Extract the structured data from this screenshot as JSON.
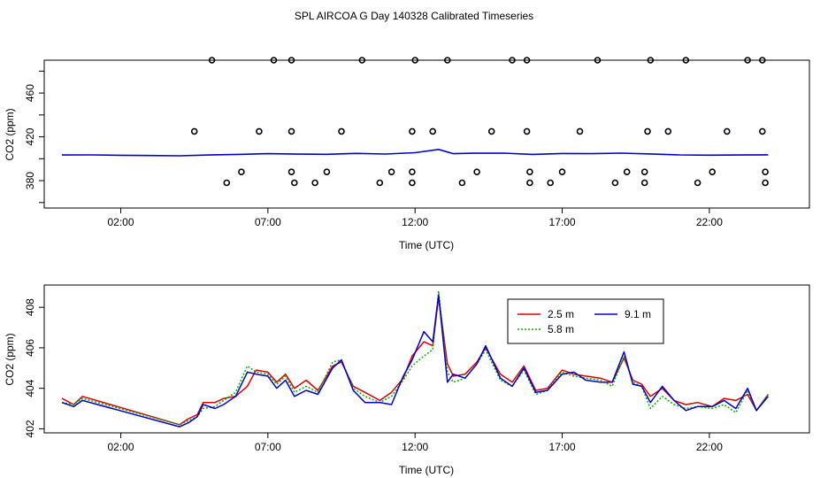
{
  "title": "SPL AIRCOA G  Day 140328  Calibrated Timeseries",
  "colors": {
    "s25": "#e00000",
    "s58": "#00b000",
    "s91": "#0000d0",
    "axis": "#000000"
  },
  "chart_data": [
    {
      "type": "scatter",
      "ylabel": "CO2 (ppm)",
      "xlabel": "Time (UTC)",
      "xlim_hours": [
        -0.6,
        25.4
      ],
      "ylim": [
        355,
        490
      ],
      "x_ticks": [
        {
          "h": 2,
          "label": "02:00"
        },
        {
          "h": 7,
          "label": "07:00"
        },
        {
          "h": 12,
          "label": "12:00"
        },
        {
          "h": 17,
          "label": "17:00"
        },
        {
          "h": 22,
          "label": "22:00"
        }
      ],
      "y_ticks": [
        {
          "v": 380,
          "label": "380"
        },
        {
          "v": 420,
          "label": "420"
        },
        {
          "v": 460,
          "label": "460"
        }
      ],
      "y_ticks_unlabeled": [
        360,
        400,
        440,
        480
      ],
      "line_color": "#0000d0",
      "line": [
        [
          0,
          403.4
        ],
        [
          1,
          403.5
        ],
        [
          2,
          403.2
        ],
        [
          3,
          402.9
        ],
        [
          4,
          402.7
        ],
        [
          5,
          403.4
        ],
        [
          6,
          404
        ],
        [
          7,
          404.6
        ],
        [
          8,
          404.2
        ],
        [
          9,
          404.1
        ],
        [
          10,
          404.9
        ],
        [
          11,
          404.3
        ],
        [
          12,
          405.5
        ],
        [
          12.8,
          408.5
        ],
        [
          13.3,
          404.6
        ],
        [
          14,
          405
        ],
        [
          15,
          405.1
        ],
        [
          16,
          404
        ],
        [
          17,
          404.8
        ],
        [
          18,
          404.6
        ],
        [
          19,
          405.1
        ],
        [
          20,
          404.4
        ],
        [
          21,
          403.5
        ],
        [
          22,
          403.3
        ],
        [
          23,
          403.4
        ],
        [
          24,
          403.6
        ]
      ],
      "points": [
        [
          5.1,
          490
        ],
        [
          7.2,
          490
        ],
        [
          7.8,
          490
        ],
        [
          10.2,
          490
        ],
        [
          12,
          490
        ],
        [
          13.1,
          490
        ],
        [
          15.3,
          490
        ],
        [
          15.8,
          490
        ],
        [
          18.2,
          490
        ],
        [
          20.0,
          490
        ],
        [
          21.2,
          490
        ],
        [
          23.3,
          490
        ],
        [
          23.8,
          490
        ],
        [
          4.5,
          425
        ],
        [
          6.7,
          425
        ],
        [
          7.8,
          425
        ],
        [
          9.5,
          425
        ],
        [
          11.9,
          425
        ],
        [
          12.6,
          425
        ],
        [
          14.6,
          425
        ],
        [
          15.8,
          425
        ],
        [
          17.6,
          425
        ],
        [
          19.9,
          425
        ],
        [
          20.6,
          425
        ],
        [
          22.6,
          425
        ],
        [
          23.8,
          425
        ],
        [
          6.1,
          388
        ],
        [
          7.8,
          388
        ],
        [
          9.0,
          388
        ],
        [
          11.2,
          388
        ],
        [
          11.9,
          388
        ],
        [
          14.1,
          388
        ],
        [
          15.9,
          388
        ],
        [
          17.0,
          388
        ],
        [
          19.2,
          388
        ],
        [
          19.8,
          388
        ],
        [
          22.1,
          388
        ],
        [
          23.9,
          388
        ],
        [
          5.6,
          378
        ],
        [
          7.9,
          378
        ],
        [
          8.6,
          378
        ],
        [
          10.8,
          378
        ],
        [
          11.9,
          378
        ],
        [
          13.6,
          378
        ],
        [
          15.9,
          378
        ],
        [
          16.6,
          378
        ],
        [
          18.8,
          378
        ],
        [
          19.8,
          378
        ],
        [
          21.6,
          378
        ],
        [
          23.9,
          378
        ]
      ]
    },
    {
      "type": "line",
      "ylabel": "CO2 (ppm)",
      "xlabel": "Time (UTC)",
      "xlim_hours": [
        -0.6,
        25.4
      ],
      "ylim": [
        401.8,
        409.1
      ],
      "x_ticks": [
        {
          "h": 2,
          "label": "02:00"
        },
        {
          "h": 7,
          "label": "07:00"
        },
        {
          "h": 12,
          "label": "12:00"
        },
        {
          "h": 17,
          "label": "17:00"
        },
        {
          "h": 22,
          "label": "22:00"
        }
      ],
      "y_ticks": [
        {
          "v": 402,
          "label": "402"
        },
        {
          "v": 404,
          "label": "404"
        },
        {
          "v": 406,
          "label": "406"
        },
        {
          "v": 408,
          "label": "408"
        }
      ],
      "legend": {
        "position": "top-right"
      },
      "series": [
        {
          "name": "2.5 m",
          "color": "#e00000",
          "dash": "",
          "points": [
            [
              0,
              403.5
            ],
            [
              0.4,
              403.2
            ],
            [
              0.7,
              403.6
            ],
            [
              4,
              402.2
            ],
            [
              4.3,
              402.5
            ],
            [
              4.6,
              402.7
            ],
            [
              4.8,
              403.3
            ],
            [
              5.2,
              403.3
            ],
            [
              5.5,
              403.5
            ],
            [
              5.9,
              403.6
            ],
            [
              6.3,
              404.1
            ],
            [
              6.6,
              404.9
            ],
            [
              7,
              404.8
            ],
            [
              7.3,
              404.3
            ],
            [
              7.6,
              404.7
            ],
            [
              7.9,
              404
            ],
            [
              8.3,
              404.4
            ],
            [
              8.7,
              403.9
            ],
            [
              9.2,
              405.1
            ],
            [
              9.5,
              405.3
            ],
            [
              9.9,
              404.1
            ],
            [
              10.3,
              403.8
            ],
            [
              10.8,
              403.4
            ],
            [
              11.2,
              403.8
            ],
            [
              11.6,
              404.5
            ],
            [
              11.9,
              405.6
            ],
            [
              12.3,
              406.3
            ],
            [
              12.6,
              406.1
            ],
            [
              12.8,
              408.5
            ],
            [
              13.1,
              405.2
            ],
            [
              13.3,
              404.6
            ],
            [
              13.7,
              404.7
            ],
            [
              14.1,
              405.3
            ],
            [
              14.4,
              406
            ],
            [
              14.9,
              404.7
            ],
            [
              15.3,
              404.3
            ],
            [
              15.7,
              405.1
            ],
            [
              16.1,
              403.9
            ],
            [
              16.5,
              404
            ],
            [
              17,
              404.9
            ],
            [
              17.4,
              404.7
            ],
            [
              17.8,
              404.6
            ],
            [
              18.3,
              404.5
            ],
            [
              18.7,
              404.3
            ],
            [
              19.1,
              405.5
            ],
            [
              19.4,
              404.4
            ],
            [
              19.7,
              404.2
            ],
            [
              20,
              403.6
            ],
            [
              20.4,
              404
            ],
            [
              20.8,
              403.4
            ],
            [
              21.2,
              403.2
            ],
            [
              21.6,
              403.3
            ],
            [
              22.1,
              403.1
            ],
            [
              22.5,
              403.5
            ],
            [
              22.9,
              403.4
            ],
            [
              23.3,
              403.7
            ],
            [
              23.6,
              402.9
            ],
            [
              24,
              403.7
            ]
          ]
        },
        {
          "name": "5.8 m",
          "color": "#00b000",
          "dash": "2,2",
          "points": [
            [
              0,
              403.3
            ],
            [
              0.4,
              403.2
            ],
            [
              0.7,
              403.5
            ],
            [
              4,
              402.2
            ],
            [
              4.3,
              402.4
            ],
            [
              4.6,
              402.6
            ],
            [
              4.8,
              403.0
            ],
            [
              5.2,
              403.1
            ],
            [
              5.5,
              403.4
            ],
            [
              5.9,
              403.8
            ],
            [
              6.3,
              405.1
            ],
            [
              6.6,
              404.8
            ],
            [
              7,
              404.7
            ],
            [
              7.3,
              404.2
            ],
            [
              7.6,
              404.6
            ],
            [
              7.9,
              403.8
            ],
            [
              8.3,
              404.1
            ],
            [
              8.7,
              403.8
            ],
            [
              9.2,
              405.3
            ],
            [
              9.5,
              405.4
            ],
            [
              9.9,
              404
            ],
            [
              10.3,
              403.6
            ],
            [
              10.8,
              403.3
            ],
            [
              11.2,
              403.6
            ],
            [
              11.6,
              404.4
            ],
            [
              11.9,
              405.1
            ],
            [
              12.3,
              405.6
            ],
            [
              12.6,
              405.9
            ],
            [
              12.8,
              408.8
            ],
            [
              13.1,
              404.8
            ],
            [
              13.3,
              404.3
            ],
            [
              13.7,
              404.5
            ],
            [
              14.1,
              405.2
            ],
            [
              14.4,
              405.9
            ],
            [
              14.9,
              404.4
            ],
            [
              15.3,
              404.1
            ],
            [
              15.7,
              404.9
            ],
            [
              16.1,
              403.7
            ],
            [
              16.5,
              403.9
            ],
            [
              17,
              404.8
            ],
            [
              17.4,
              404.6
            ],
            [
              17.8,
              404.5
            ],
            [
              18.3,
              404.4
            ],
            [
              18.7,
              404.1
            ],
            [
              19.1,
              405.6
            ],
            [
              19.4,
              404.3
            ],
            [
              19.7,
              404.1
            ],
            [
              20,
              403
            ],
            [
              20.4,
              403.6
            ],
            [
              20.8,
              403.2
            ],
            [
              21.2,
              403
            ],
            [
              21.6,
              403.1
            ],
            [
              22.1,
              403
            ],
            [
              22.5,
              403.2
            ],
            [
              22.9,
              402.8
            ],
            [
              23.3,
              403.9
            ],
            [
              23.6,
              402.9
            ],
            [
              24,
              403.7
            ]
          ]
        },
        {
          "name": "9.1 m",
          "color": "#0000d0",
          "dash": "",
          "points": [
            [
              0,
              403.3
            ],
            [
              0.4,
              403.1
            ],
            [
              0.7,
              403.4
            ],
            [
              4,
              402.1
            ],
            [
              4.3,
              402.3
            ],
            [
              4.6,
              402.6
            ],
            [
              4.8,
              403.2
            ],
            [
              5.2,
              403
            ],
            [
              5.5,
              403.2
            ],
            [
              5.9,
              403.6
            ],
            [
              6.3,
              404.8
            ],
            [
              6.6,
              404.7
            ],
            [
              7,
              404.6
            ],
            [
              7.3,
              404
            ],
            [
              7.6,
              404.4
            ],
            [
              7.9,
              403.6
            ],
            [
              8.3,
              403.9
            ],
            [
              8.7,
              403.7
            ],
            [
              9.2,
              405
            ],
            [
              9.5,
              405.4
            ],
            [
              9.9,
              403.9
            ],
            [
              10.3,
              403.3
            ],
            [
              10.8,
              403.3
            ],
            [
              11.2,
              403.2
            ],
            [
              11.6,
              404.6
            ],
            [
              11.9,
              405.4
            ],
            [
              12.3,
              406.8
            ],
            [
              12.6,
              406.3
            ],
            [
              12.8,
              408.6
            ],
            [
              13.1,
              404.3
            ],
            [
              13.3,
              404.7
            ],
            [
              13.7,
              404.5
            ],
            [
              14.1,
              405.2
            ],
            [
              14.4,
              406.1
            ],
            [
              14.9,
              404.5
            ],
            [
              15.3,
              404.1
            ],
            [
              15.7,
              405
            ],
            [
              16.1,
              403.8
            ],
            [
              16.5,
              403.9
            ],
            [
              17,
              404.7
            ],
            [
              17.4,
              404.8
            ],
            [
              17.8,
              404.4
            ],
            [
              18.3,
              404.3
            ],
            [
              18.7,
              404.3
            ],
            [
              19.1,
              405.8
            ],
            [
              19.4,
              404.2
            ],
            [
              19.7,
              404.1
            ],
            [
              20,
              403.3
            ],
            [
              20.4,
              404.1
            ],
            [
              20.8,
              403.4
            ],
            [
              21.2,
              402.9
            ],
            [
              21.6,
              403.1
            ],
            [
              22.1,
              403.1
            ],
            [
              22.5,
              403.4
            ],
            [
              22.9,
              403
            ],
            [
              23.3,
              404
            ],
            [
              23.6,
              402.9
            ],
            [
              24,
              403.6
            ]
          ]
        }
      ]
    }
  ]
}
